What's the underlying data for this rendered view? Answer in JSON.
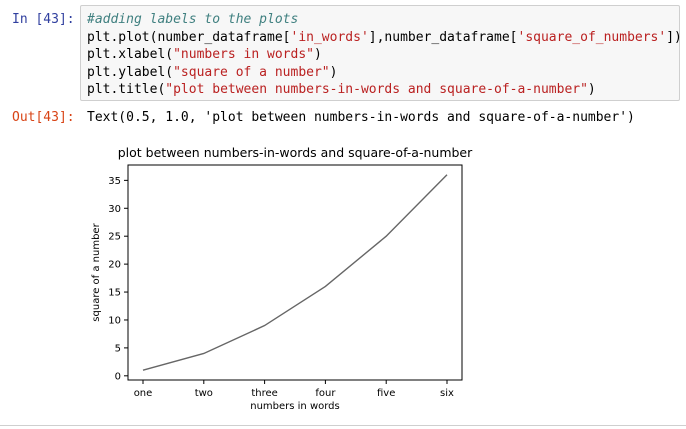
{
  "input_cell": {
    "prompt": "In [43]:",
    "lines": [
      {
        "kind": "comment",
        "text": "#adding labels to the plots"
      },
      {
        "kind": "code",
        "parts": [
          "plt.plot(number_dataframe[",
          "'in_words'",
          "],number_dataframe[",
          "'square_of_numbers'",
          "])"
        ]
      },
      {
        "kind": "code",
        "parts": [
          "plt.xlabel(",
          "\"numbers in words\"",
          ")"
        ]
      },
      {
        "kind": "code",
        "parts": [
          "plt.ylabel(",
          "\"square of a number\"",
          ")"
        ]
      },
      {
        "kind": "code",
        "parts": [
          "plt.title(",
          "\"plot between numbers-in-words and square-of-a-number\"",
          ")"
        ]
      }
    ]
  },
  "output_cell": {
    "prompt": "Out[43]:",
    "text": "Text(0.5, 1.0, 'plot between numbers-in-words and square-of-a-number')"
  },
  "chart_data": {
    "type": "line",
    "title": "plot between numbers-in-words and square-of-a-number",
    "xlabel": "numbers in words",
    "ylabel": "square of a number",
    "categories": [
      "one",
      "two",
      "three",
      "four",
      "five",
      "six"
    ],
    "values": [
      1,
      4,
      9,
      16,
      25,
      36
    ],
    "ylim": [
      -0.75,
      37.75
    ],
    "yticks": [
      0,
      5,
      10,
      15,
      20,
      25,
      30,
      35
    ],
    "grid": false,
    "line_color": "#666666"
  }
}
